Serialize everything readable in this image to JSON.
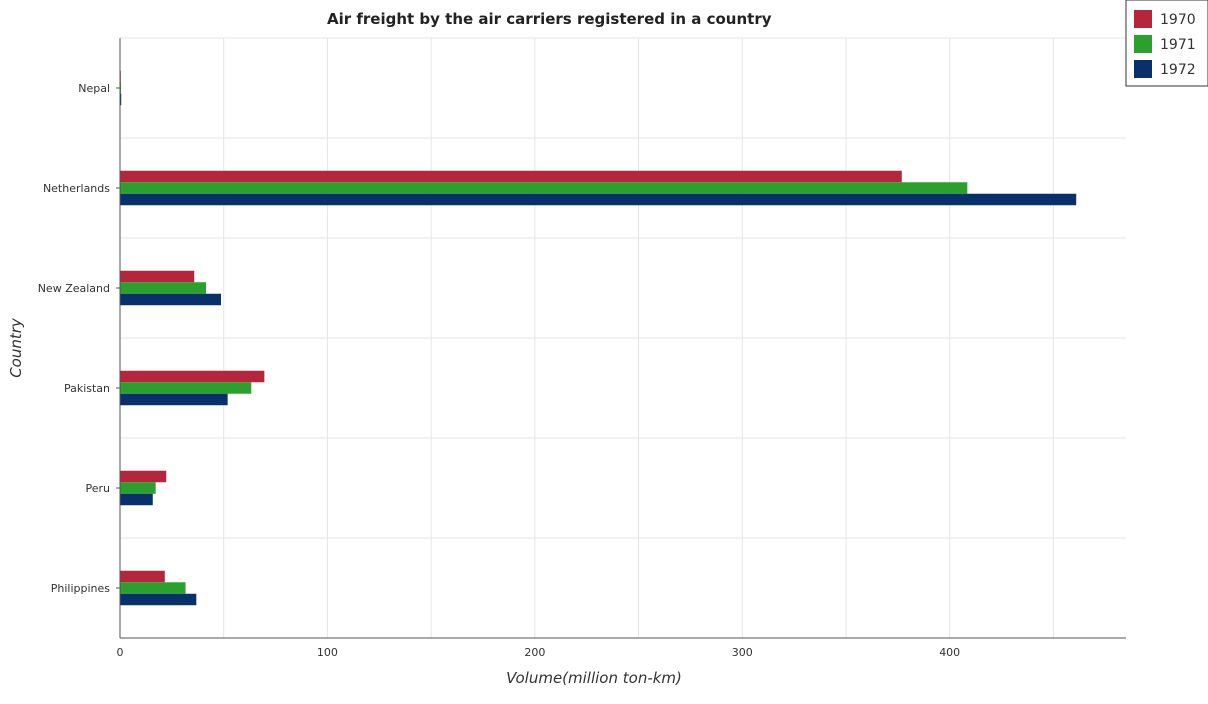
{
  "title": "Air freight by the air carriers registered in a country",
  "chart_data": {
    "type": "bar",
    "orientation": "horizontal",
    "title": "Air freight by the air carriers registered in a country",
    "xlabel": "Volume(million ton-km)",
    "ylabel": "Country",
    "categories": [
      "Nepal",
      "Netherlands",
      "New Zealand",
      "Pakistan",
      "Peru",
      "Philippines"
    ],
    "xlim": [
      0,
      485
    ],
    "xticks": [
      0,
      100,
      200,
      300,
      400
    ],
    "grid": true,
    "legend_position": "top-right, outside",
    "series": [
      {
        "name": "1970",
        "color": "#b5263c",
        "values": [
          0.4,
          376.9,
          35.8,
          69.6,
          22.3,
          21.6
        ]
      },
      {
        "name": "1971",
        "color": "#2ca02c",
        "values": [
          0.5,
          408.5,
          41.5,
          63.3,
          17.2,
          31.6
        ]
      },
      {
        "name": "1972",
        "color": "#08306b",
        "values": [
          0.6,
          461.0,
          48.7,
          51.9,
          15.8,
          36.8
        ]
      }
    ]
  }
}
